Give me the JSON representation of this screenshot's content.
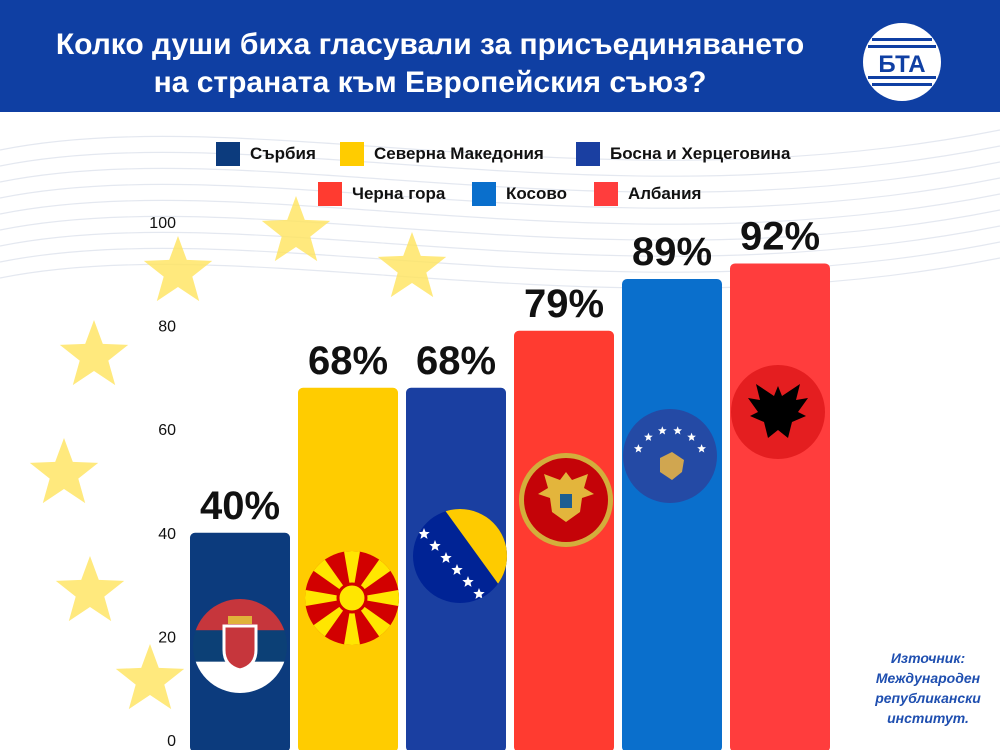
{
  "header": {
    "title_line1": "Колко души биха гласували за присъединяването",
    "title_line2": "на страната към Европейския съюз?",
    "logo_text": "БТА"
  },
  "colors": {
    "header_bg": "#0f3fa3",
    "serbia": "#0c3b7d",
    "north_macedonia": "#ffcc00",
    "bosnia": "#1a3fa1",
    "montenegro": "#ff3b30",
    "kosovo": "#0a6fcc",
    "albania": "#ff3d3d",
    "eu_star": "#ffe45c"
  },
  "source": {
    "line1": "Източник:",
    "line2": "Международен",
    "line3": "републикански",
    "line4": "институт."
  },
  "chart_data": {
    "type": "bar",
    "categories": [
      "Сърбия",
      "Северна Македония",
      "Босна и Херцеговина",
      "Черна гора",
      "Косово",
      "Албания"
    ],
    "values": [
      40,
      68,
      68,
      79,
      89,
      92
    ],
    "value_labels": [
      "40%",
      "68%",
      "68%",
      "79%",
      "89%",
      "92%"
    ],
    "colors": [
      "#0c3b7d",
      "#ffcc00",
      "#1a3fa1",
      "#ff3b30",
      "#0a6fcc",
      "#ff3d3d"
    ],
    "flag_icons": [
      "serbia-flag-icon",
      "north-macedonia-flag-icon",
      "bosnia-flag-icon",
      "montenegro-flag-icon",
      "kosovo-flag-icon",
      "albania-flag-icon"
    ],
    "title": "Колко души биха гласували за присъединяването на страната към Европейския съюз?",
    "xlabel": "",
    "ylabel": "",
    "ylim": [
      0,
      100
    ],
    "yticks": [
      0,
      20,
      40,
      60,
      80,
      100
    ],
    "grid": false,
    "legend": "top"
  }
}
